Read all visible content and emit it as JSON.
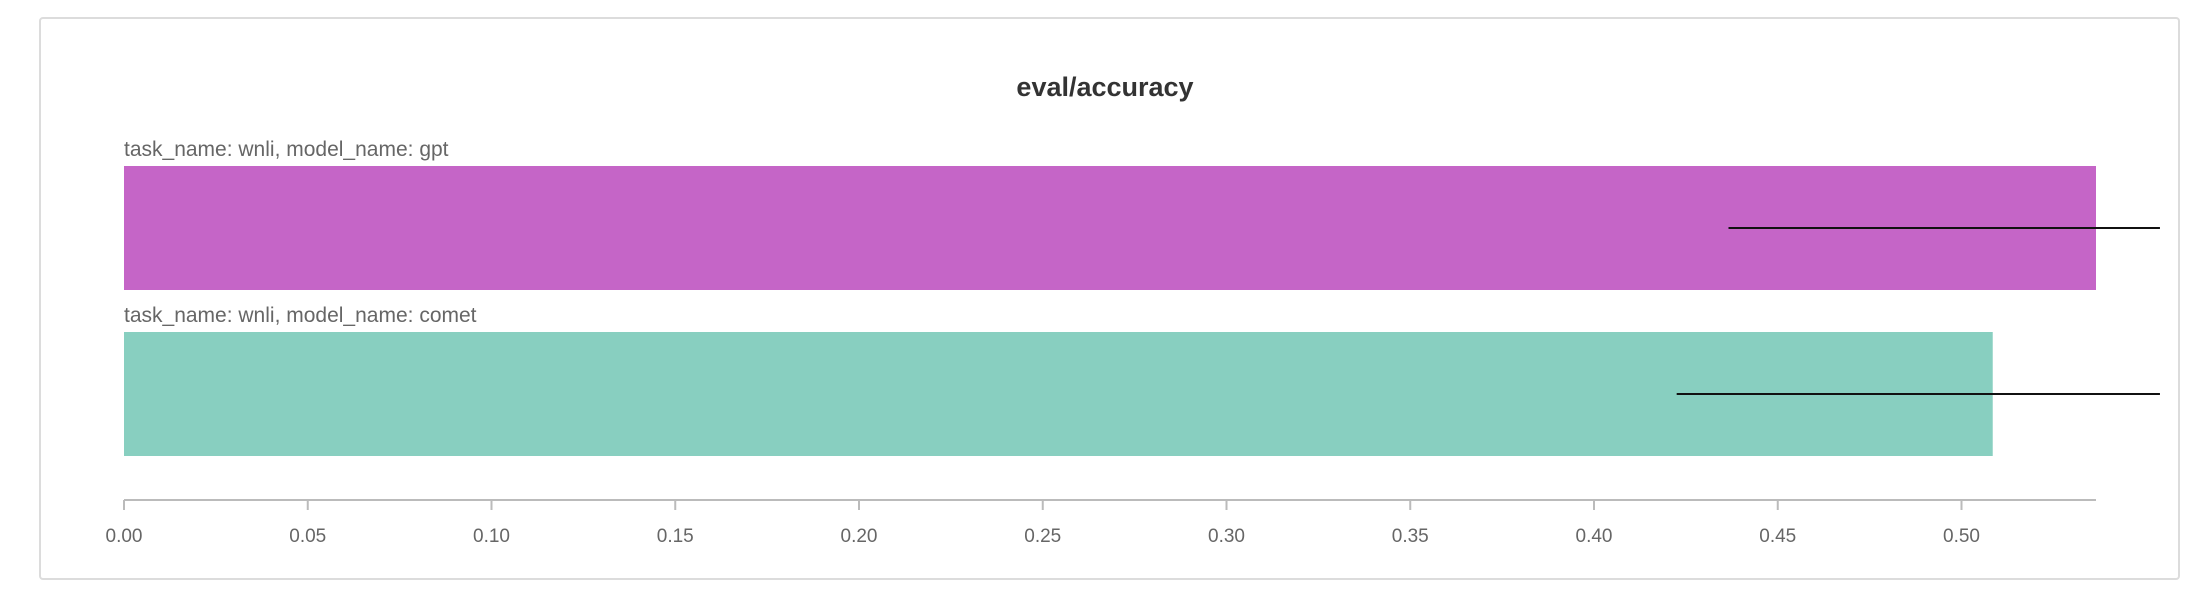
{
  "chart_data": {
    "type": "bar",
    "orientation": "horizontal",
    "title": "eval/accuracy",
    "xlabel": "",
    "ylabel": "",
    "xlim": [
      0,
      0.5366
    ],
    "grid": false,
    "legend": "none",
    "series": [
      {
        "name": "task_name: wnli, model_name: gpt",
        "value": 0.5366,
        "color": "#c565c7",
        "error_low": 0.4366,
        "error_high": 0.554
      },
      {
        "name": "task_name: wnli, model_name: comet",
        "value": 0.5085,
        "color": "#88cfc0",
        "error_low": 0.4225,
        "error_high": 0.554
      }
    ],
    "ticks": [
      "0.00",
      "0.05",
      "0.10",
      "0.15",
      "0.20",
      "0.25",
      "0.30",
      "0.35",
      "0.40",
      "0.45",
      "0.50"
    ],
    "tick_values": [
      0,
      0.05,
      0.1,
      0.15,
      0.2,
      0.25,
      0.3,
      0.35,
      0.4,
      0.45,
      0.5
    ]
  }
}
